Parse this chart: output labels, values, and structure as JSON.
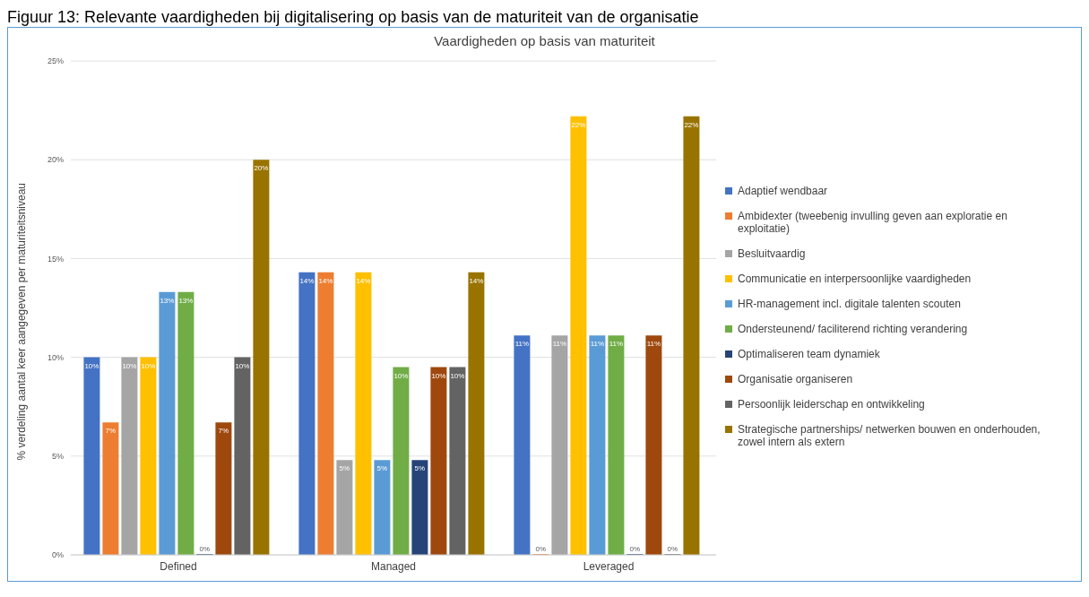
{
  "chart_data": {
    "type": "bar",
    "title": "Vaardigheden op basis van maturiteit",
    "ylabel": "% verdeling aantal keer aangegeven per maturiteitsniveau",
    "annotations": [
      "Figuur 13: Relevante vaardigheden bij digitalisering op basis van de maturiteit van de organisatie"
    ],
    "categories": [
      "Defined",
      "Managed",
      "Leveraged"
    ],
    "series": [
      {
        "name": "Adaptief wendbaar",
        "color": "#4472c4",
        "values": [
          10,
          14.3,
          11.1
        ],
        "value_labels": [
          "10%",
          "14%",
          "11%"
        ]
      },
      {
        "name": "Ambidexter (tweebenig invulling geven aan exploratie en exploitatie)",
        "color": "#ed7d31",
        "values": [
          6.7,
          14.3,
          0
        ],
        "value_labels": [
          "7%",
          "14%",
          "0%"
        ]
      },
      {
        "name": "Besluitvaardig",
        "color": "#a5a5a5",
        "values": [
          10,
          4.8,
          11.1
        ],
        "value_labels": [
          "10%",
          "5%",
          "11%"
        ]
      },
      {
        "name": "Communicatie en interpersoonlijke vaardigheden",
        "color": "#ffc000",
        "values": [
          10,
          14.3,
          22.2
        ],
        "value_labels": [
          "10%",
          "14%",
          "22%"
        ]
      },
      {
        "name": "HR-management incl. digitale talenten scouten",
        "color": "#5b9bd5",
        "values": [
          13.3,
          4.8,
          11.1
        ],
        "value_labels": [
          "13%",
          "5%",
          "11%"
        ]
      },
      {
        "name": "Ondersteunend/ faciliterend richting verandering",
        "color": "#70ad47",
        "values": [
          13.3,
          9.5,
          11.1
        ],
        "value_labels": [
          "13%",
          "10%",
          "11%"
        ]
      },
      {
        "name": "Optimaliseren team dynamiek",
        "color": "#264478",
        "values": [
          0,
          4.8,
          0
        ],
        "value_labels": [
          "0%",
          "5%",
          "0%"
        ]
      },
      {
        "name": "Organisatie organiseren",
        "color": "#9e480e",
        "values": [
          6.7,
          9.5,
          11.1
        ],
        "value_labels": [
          "7%",
          "10%",
          "11%"
        ]
      },
      {
        "name": "Persoonlijk leiderschap en ontwikkeling",
        "color": "#636363",
        "values": [
          10,
          9.5,
          0
        ],
        "value_labels": [
          "10%",
          "10%",
          "0%"
        ]
      },
      {
        "name": "Strategische partnerships/ netwerken bouwen en onderhouden, zowel intern als extern",
        "color": "#997300",
        "values": [
          20,
          14.3,
          22.2
        ],
        "value_labels": [
          "20%",
          "14%",
          "22%"
        ]
      }
    ],
    "ylim": [
      0,
      25
    ],
    "yticks": [
      {
        "value": 0,
        "label": "0%"
      },
      {
        "value": 5,
        "label": "5%"
      },
      {
        "value": 10,
        "label": "10%"
      },
      {
        "value": 15,
        "label": "15%"
      },
      {
        "value": 20,
        "label": "20%"
      },
      {
        "value": 25,
        "label": "25%"
      }
    ],
    "grid": "y",
    "legend": "right"
  }
}
